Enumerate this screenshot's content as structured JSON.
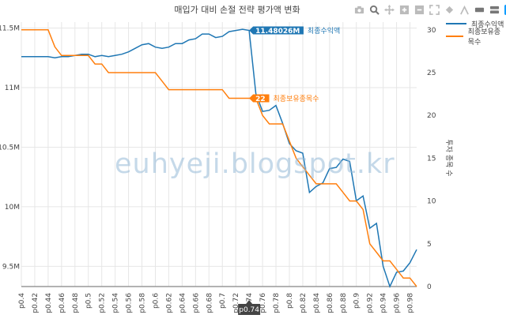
{
  "chart_data": {
    "type": "line",
    "title": "매입가 대비 손절 전략 평가액 변화",
    "xlabel": "",
    "y2label": "투자 종목 수",
    "x_ticks": [
      "p0.4",
      "p0.42",
      "p0.44",
      "p0.46",
      "p0.48",
      "p0.5",
      "p0.52",
      "p0.54",
      "p0.56",
      "p0.58",
      "p0.6",
      "p0.62",
      "p0.64",
      "p0.66",
      "p0.68",
      "p0.7",
      "p0.72",
      "p0.74",
      "p0.76",
      "p0.78",
      "p0.8",
      "p0.82",
      "p0.84",
      "p0.86",
      "p0.88",
      "p0.9",
      "p0.92",
      "p0.94",
      "p0.96",
      "p0.98"
    ],
    "xlim": [
      0.4,
      0.99
    ],
    "y_ticks": [
      {
        "v": 9.5,
        "label": "9.5M"
      },
      {
        "v": 10,
        "label": "10M"
      },
      {
        "v": 10.5,
        "label": "10.5M"
      },
      {
        "v": 11,
        "label": "11M"
      },
      {
        "v": 11.5,
        "label": "11.5M"
      }
    ],
    "ylim": [
      9.33,
      11.55
    ],
    "y2_ticks": [
      0,
      5,
      10,
      15,
      20,
      25,
      30
    ],
    "y2lim": [
      0,
      30.9
    ],
    "series": [
      {
        "name": "최종수익액",
        "color": "#1f77b4",
        "axis": "y",
        "x": [
          0.4,
          0.41,
          0.42,
          0.43,
          0.44,
          0.45,
          0.46,
          0.47,
          0.48,
          0.49,
          0.5,
          0.51,
          0.52,
          0.53,
          0.54,
          0.55,
          0.56,
          0.57,
          0.58,
          0.59,
          0.6,
          0.61,
          0.62,
          0.63,
          0.64,
          0.65,
          0.66,
          0.67,
          0.68,
          0.69,
          0.7,
          0.71,
          0.72,
          0.73,
          0.74,
          0.75,
          0.76,
          0.77,
          0.78,
          0.79,
          0.8,
          0.81,
          0.82,
          0.83,
          0.84,
          0.85,
          0.86,
          0.87,
          0.88,
          0.89,
          0.9,
          0.91,
          0.92,
          0.93,
          0.94,
          0.95,
          0.96,
          0.97,
          0.98,
          0.99
        ],
        "values": [
          11.26,
          11.26,
          11.26,
          11.26,
          11.26,
          11.25,
          11.26,
          11.26,
          11.27,
          11.28,
          11.28,
          11.26,
          11.27,
          11.26,
          11.27,
          11.28,
          11.3,
          11.33,
          11.36,
          11.37,
          11.34,
          11.33,
          11.34,
          11.37,
          11.37,
          11.4,
          11.41,
          11.45,
          11.45,
          11.42,
          11.43,
          11.47,
          11.48,
          11.49,
          11.48026,
          10.95,
          10.8,
          10.81,
          10.85,
          10.7,
          10.53,
          10.47,
          10.45,
          10.12,
          10.17,
          10.2,
          10.32,
          10.33,
          10.4,
          10.38,
          10.05,
          10.09,
          9.82,
          9.86,
          9.5,
          9.33,
          9.45,
          9.46,
          9.53,
          9.64
        ]
      },
      {
        "name": "최종보유종목수",
        "color": "#ff7f0e",
        "axis": "y2",
        "x": [
          0.4,
          0.41,
          0.42,
          0.43,
          0.44,
          0.45,
          0.46,
          0.47,
          0.48,
          0.49,
          0.5,
          0.51,
          0.52,
          0.53,
          0.54,
          0.55,
          0.56,
          0.57,
          0.58,
          0.59,
          0.6,
          0.61,
          0.62,
          0.63,
          0.64,
          0.65,
          0.66,
          0.67,
          0.68,
          0.69,
          0.7,
          0.71,
          0.72,
          0.73,
          0.74,
          0.75,
          0.76,
          0.77,
          0.78,
          0.79,
          0.8,
          0.81,
          0.82,
          0.83,
          0.84,
          0.85,
          0.86,
          0.87,
          0.88,
          0.89,
          0.9,
          0.91,
          0.92,
          0.93,
          0.94,
          0.95,
          0.96,
          0.97,
          0.98,
          0.99
        ],
        "values": [
          30,
          30,
          30,
          30,
          30,
          28,
          27,
          27,
          27,
          27,
          27,
          26,
          26,
          25,
          25,
          25,
          25,
          25,
          25,
          25,
          25,
          24,
          23,
          23,
          23,
          23,
          23,
          23,
          23,
          23,
          23,
          22,
          22,
          22,
          22,
          22,
          20,
          19,
          19,
          19,
          17,
          15,
          14,
          13,
          12,
          12,
          12,
          12,
          11,
          10,
          10,
          9,
          5,
          4,
          3,
          3,
          2,
          1,
          1,
          0
        ]
      }
    ],
    "annotations": [
      {
        "series": 0,
        "x": 0.74,
        "label": "11.48026M",
        "name": "최종수익액"
      },
      {
        "series": 1,
        "x": 0.74,
        "label": "22",
        "name": "최종보유종목수"
      }
    ],
    "hover_x_label": "p0.74",
    "grid": true,
    "legend_position": "top-right"
  },
  "watermark": "euhyeji.blogspot.kr",
  "modebar": [
    "camera-icon",
    "zoom-icon",
    "pan-icon",
    "zoom-in-icon",
    "zoom-out-icon",
    "autoscale-icon",
    "reset-axes-icon",
    "spike-lines-icon",
    "hover-closest-icon",
    "hover-compare-icon",
    "plotly-logo-icon"
  ]
}
